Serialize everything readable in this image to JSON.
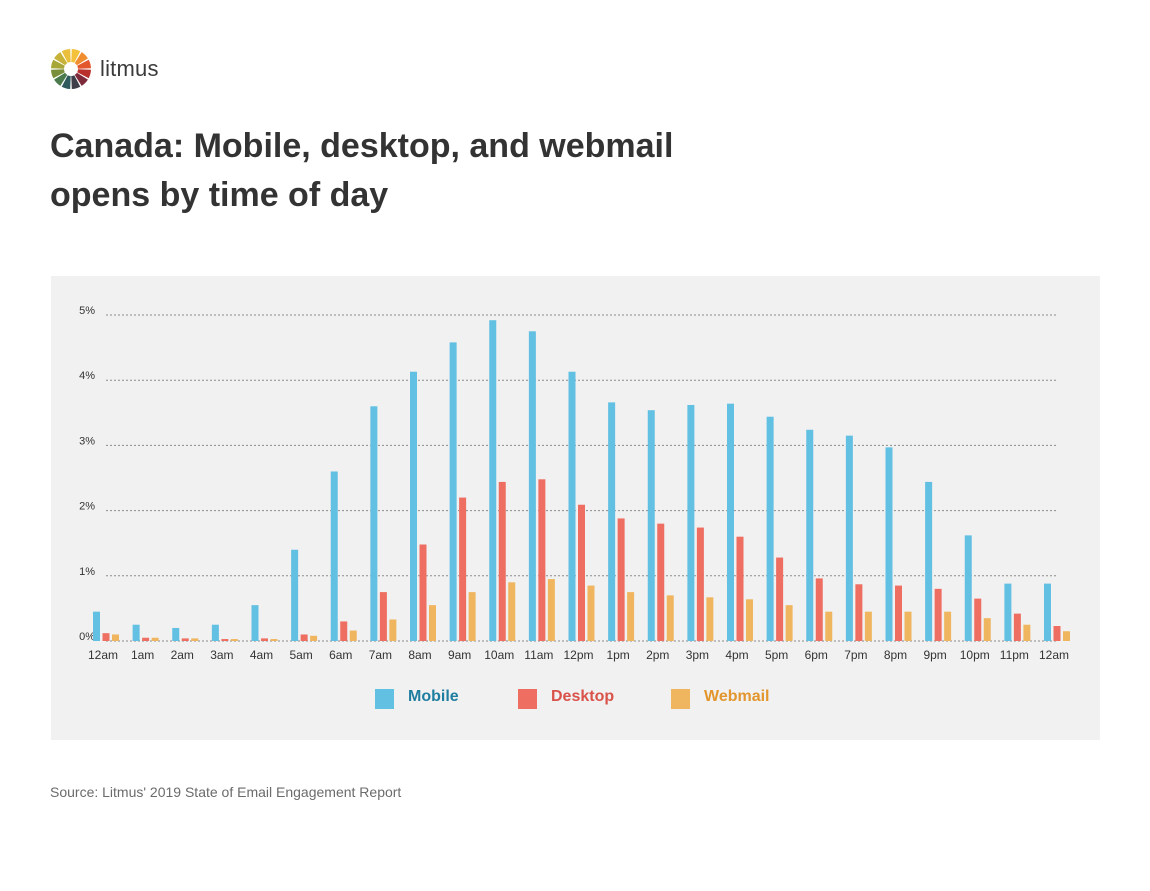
{
  "brand": {
    "name": "litmus",
    "icon": "litmus-sunburst-logo"
  },
  "title_lines": [
    "Canada: Mobile, desktop, and webmail",
    "opens by time of day"
  ],
  "source": "Source: Litmus' 2019 State of Email Engagement Report",
  "chart_data": {
    "type": "bar",
    "title": "Canada: Mobile, desktop, and webmail opens by time of day",
    "xlabel": "",
    "ylabel": "",
    "ylim": [
      0,
      5
    ],
    "y_ticks": [
      0,
      1,
      2,
      3,
      4,
      5
    ],
    "y_tick_labels": [
      "0%",
      "1%",
      "2%",
      "3%",
      "4%",
      "5%"
    ],
    "grid": true,
    "legend_position": "bottom-center",
    "categories": [
      "12am",
      "1am",
      "2am",
      "3am",
      "4am",
      "5am",
      "6am",
      "7am",
      "8am",
      "9am",
      "10am",
      "11am",
      "12pm",
      "1pm",
      "2pm",
      "3pm",
      "4pm",
      "5pm",
      "6pm",
      "7pm",
      "8pm",
      "9pm",
      "10pm",
      "11pm"
    ],
    "x_tick_labels": [
      "12am",
      "1am",
      "2am",
      "3am",
      "4am",
      "5am",
      "6am",
      "7am",
      "8am",
      "9am",
      "10am",
      "11am",
      "12pm",
      "1pm",
      "2pm",
      "3pm",
      "4pm",
      "5pm",
      "6pm",
      "7pm",
      "8pm",
      "9pm",
      "10pm",
      "11pm",
      "12am"
    ],
    "series": [
      {
        "name": "Mobile",
        "color": "#62c0e2",
        "label_color": "#1f7ea0",
        "values": [
          0.45,
          0.25,
          0.2,
          0.25,
          0.55,
          1.4,
          2.6,
          3.6,
          4.13,
          4.58,
          4.92,
          4.75,
          4.13,
          3.66,
          3.54,
          3.62,
          3.64,
          3.44,
          3.24,
          3.15,
          2.97,
          2.44,
          1.62,
          0.88
        ]
      },
      {
        "name": "Desktop",
        "color": "#ee6e62",
        "label_color": "#d9534a",
        "values": [
          0.12,
          0.05,
          0.04,
          0.03,
          0.04,
          0.1,
          0.3,
          0.75,
          1.48,
          2.2,
          2.44,
          2.48,
          2.09,
          1.88,
          1.8,
          1.74,
          1.6,
          1.28,
          0.96,
          0.87,
          0.85,
          0.8,
          0.65,
          0.42
        ]
      },
      {
        "name": "Webmail",
        "color": "#f0b65f",
        "label_color": "#e2962d",
        "values": [
          0.1,
          0.05,
          0.04,
          0.03,
          0.03,
          0.08,
          0.16,
          0.33,
          0.55,
          0.75,
          0.9,
          0.95,
          0.85,
          0.75,
          0.7,
          0.67,
          0.64,
          0.55,
          0.45,
          0.45,
          0.45,
          0.45,
          0.35,
          0.25
        ]
      }
    ],
    "trailing_point": {
      "label": "12am",
      "values": [
        0.88,
        0.23,
        0.15
      ]
    }
  }
}
